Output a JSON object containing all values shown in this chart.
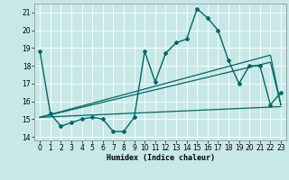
{
  "xlabel": "Humidex (Indice chaleur)",
  "ylabel": "",
  "xlim": [
    -0.5,
    23.5
  ],
  "ylim": [
    13.8,
    21.5
  ],
  "yticks": [
    14,
    15,
    16,
    17,
    18,
    19,
    20,
    21
  ],
  "xticks": [
    0,
    1,
    2,
    3,
    4,
    5,
    6,
    7,
    8,
    9,
    10,
    11,
    12,
    13,
    14,
    15,
    16,
    17,
    18,
    19,
    20,
    21,
    22,
    23
  ],
  "background_color": "#c8e8e8",
  "grid_color": "#ffffff",
  "line_color": "#006666",
  "lines": [
    {
      "x": [
        0,
        1,
        2,
        3,
        4,
        5,
        6,
        7,
        8,
        9,
        10,
        11,
        12,
        13,
        14,
        15,
        16,
        17,
        18,
        19,
        20,
        21,
        22,
        23
      ],
      "y": [
        18.8,
        15.3,
        14.6,
        14.8,
        15.0,
        15.1,
        15.0,
        14.3,
        14.3,
        15.1,
        18.8,
        17.1,
        18.7,
        19.3,
        19.5,
        21.2,
        20.7,
        20.0,
        18.3,
        17.0,
        18.0,
        18.0,
        15.8,
        16.5
      ],
      "marker": "D",
      "markersize": 2.0,
      "linewidth": 1.0,
      "zorder": 3
    },
    {
      "x": [
        0,
        23
      ],
      "y": [
        15.1,
        15.7
      ],
      "marker": null,
      "markersize": 0,
      "linewidth": 0.9,
      "zorder": 2
    },
    {
      "x": [
        0,
        22,
        23
      ],
      "y": [
        15.1,
        18.2,
        15.8
      ],
      "marker": null,
      "markersize": 0,
      "linewidth": 0.9,
      "zorder": 2
    },
    {
      "x": [
        0,
        22,
        23
      ],
      "y": [
        15.1,
        18.6,
        15.8
      ],
      "marker": null,
      "markersize": 0,
      "linewidth": 0.9,
      "zorder": 2
    }
  ]
}
